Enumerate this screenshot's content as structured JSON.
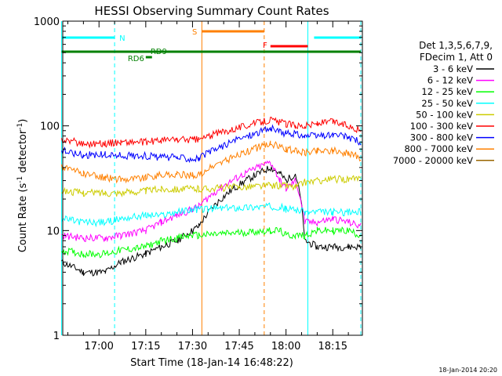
{
  "chart_data": {
    "type": "line",
    "title": "HESSI Observing Summary Count Rates",
    "xlabel": "Start Time (18-Jan-14 16:48:22)",
    "ylabel": "Count Rate (s⁻¹ detector⁻¹)",
    "yscale": "log",
    "ylim": [
      1,
      1000
    ],
    "xlim": [
      "16:48:22",
      "18:24:30"
    ],
    "x_ticks": [
      "17:00",
      "17:15",
      "17:30",
      "17:45",
      "18:00",
      "18:15"
    ],
    "y_ticks": [
      "1",
      "10",
      "100",
      "1000"
    ],
    "timestamp": "18-Jan-2014 20:20",
    "legend": {
      "position": "right",
      "header": [
        "Det 1,3,5,6,7,9,",
        "FDecim 1, Att 0"
      ]
    },
    "series": [
      {
        "name": "3 - 6 keV",
        "color": "#000000",
        "x": [
          "16:48",
          "16:55",
          "17:02",
          "17:07",
          "17:15",
          "17:20",
          "17:25",
          "17:30",
          "17:32",
          "17:55",
          "17:58",
          "18:00",
          "18:03",
          "18:06",
          "18:10",
          "18:15",
          "18:20",
          "18:24"
        ],
        "y": [
          5,
          4,
          4,
          5,
          6,
          7,
          8,
          10,
          11,
          40,
          35,
          30,
          35,
          8,
          7,
          7,
          7,
          7
        ]
      },
      {
        "name": "6 - 12 keV",
        "color": "#ff00ff",
        "x": [
          "16:48",
          "16:55",
          "17:02",
          "17:07",
          "17:15",
          "17:20",
          "17:25",
          "17:30",
          "17:32",
          "17:55",
          "17:58",
          "18:00",
          "18:03",
          "18:06",
          "18:10",
          "18:15",
          "18:20",
          "18:24"
        ],
        "y": [
          9,
          8.5,
          8.5,
          9,
          10,
          12,
          14,
          16,
          17,
          45,
          30,
          25,
          30,
          12,
          12,
          13,
          12,
          11
        ]
      },
      {
        "name": "12 - 25 keV",
        "color": "#00ff00",
        "x": [
          "16:48",
          "16:55",
          "17:02",
          "17:07",
          "17:15",
          "17:20",
          "17:25",
          "17:30",
          "17:32",
          "17:55",
          "17:58",
          "18:00",
          "18:03",
          "18:06",
          "18:10",
          "18:15",
          "18:20",
          "18:24"
        ],
        "y": [
          6.5,
          6,
          6,
          6.5,
          7,
          8,
          8.5,
          9,
          9,
          10,
          10,
          9,
          9,
          9,
          10,
          10,
          10,
          9
        ]
      },
      {
        "name": "25 - 50 keV",
        "color": "#00ffff",
        "x": [
          "16:48",
          "16:55",
          "17:02",
          "17:07",
          "17:15",
          "17:20",
          "17:25",
          "17:30",
          "17:32",
          "17:55",
          "17:58",
          "18:00",
          "18:03",
          "18:06",
          "18:10",
          "18:15",
          "18:20",
          "18:24"
        ],
        "y": [
          13,
          12,
          12,
          13,
          14,
          14,
          15,
          16,
          16,
          17,
          17,
          16,
          16,
          15,
          15,
          15,
          15,
          15
        ]
      },
      {
        "name": "50 - 100 keV",
        "color": "#cccc00",
        "x": [
          "16:48",
          "16:55",
          "17:02",
          "17:07",
          "17:15",
          "17:20",
          "17:25",
          "17:30",
          "17:32",
          "17:55",
          "17:58",
          "18:00",
          "18:03",
          "18:06",
          "18:10",
          "18:15",
          "18:20",
          "18:24"
        ],
        "y": [
          24,
          23,
          23,
          23,
          24,
          25,
          25,
          25,
          25,
          27,
          27,
          27,
          26,
          29,
          30,
          31,
          31,
          31
        ]
      },
      {
        "name": "100 - 300 keV",
        "color": "#ff0000",
        "x": [
          "16:48",
          "16:55",
          "17:02",
          "17:07",
          "17:15",
          "17:20",
          "17:25",
          "17:30",
          "17:32",
          "17:55",
          "17:58",
          "18:00",
          "18:03",
          "18:06",
          "18:10",
          "18:15",
          "18:20",
          "18:24"
        ],
        "y": [
          75,
          68,
          68,
          70,
          70,
          73,
          74,
          74,
          74,
          115,
          108,
          105,
          102,
          100,
          105,
          110,
          100,
          90
        ]
      },
      {
        "name": "300 - 800 keV",
        "color": "#0000ff",
        "x": [
          "16:48",
          "16:55",
          "17:02",
          "17:07",
          "17:15",
          "17:20",
          "17:25",
          "17:30",
          "17:32",
          "17:55",
          "17:58",
          "18:00",
          "18:03",
          "18:06",
          "18:10",
          "18:15",
          "18:20",
          "18:24"
        ],
        "y": [
          58,
          53,
          53,
          52,
          52,
          50,
          50,
          49,
          49,
          95,
          88,
          85,
          84,
          80,
          80,
          82,
          78,
          70
        ]
      },
      {
        "name": "800 - 7000 keV",
        "color": "#ff8000",
        "x": [
          "16:48",
          "16:55",
          "17:02",
          "17:07",
          "17:15",
          "17:20",
          "17:25",
          "17:30",
          "17:32",
          "17:55",
          "17:58",
          "18:00",
          "18:03",
          "18:06",
          "18:10",
          "18:15",
          "18:20",
          "18:24"
        ],
        "y": [
          40,
          35,
          32,
          31,
          32,
          34,
          34,
          34,
          34,
          68,
          63,
          60,
          58,
          56,
          58,
          58,
          55,
          50
        ]
      },
      {
        "name": "7000 - 20000 keV",
        "color": "#996600",
        "x": [],
        "y": []
      }
    ],
    "annotations": {
      "flag_bars": [
        {
          "label": "N",
          "color": "#00ffff",
          "segments": [
            [
              "16:48",
              "17:05"
            ],
            [
              "18:09",
              "18:24"
            ]
          ]
        },
        {
          "label": "S",
          "color": "#ff8000",
          "segments": [
            [
              "17:33",
              "17:53"
            ]
          ]
        },
        {
          "label": "F",
          "color": "#ff0000",
          "segments": [
            [
              "17:55",
              "18:07"
            ]
          ]
        },
        {
          "label": "RD9",
          "color": "#008000",
          "segments": [
            [
              "16:48",
              "18:24"
            ]
          ]
        },
        {
          "label": "RD6",
          "color": "#008000",
          "segments": [
            [
              "17:15",
              "17:17"
            ]
          ]
        }
      ],
      "vlines": [
        {
          "time": "16:48",
          "color": "#00ffff",
          "style": "solid"
        },
        {
          "time": "17:05",
          "color": "#00ffff",
          "style": "dashed"
        },
        {
          "time": "17:33",
          "color": "#ff8000",
          "style": "solid"
        },
        {
          "time": "17:53",
          "color": "#ff8000",
          "style": "dashed"
        },
        {
          "time": "18:07",
          "color": "#00ffff",
          "style": "solid"
        },
        {
          "time": "18:24",
          "color": "#00ffff",
          "style": "dashed"
        }
      ]
    }
  }
}
